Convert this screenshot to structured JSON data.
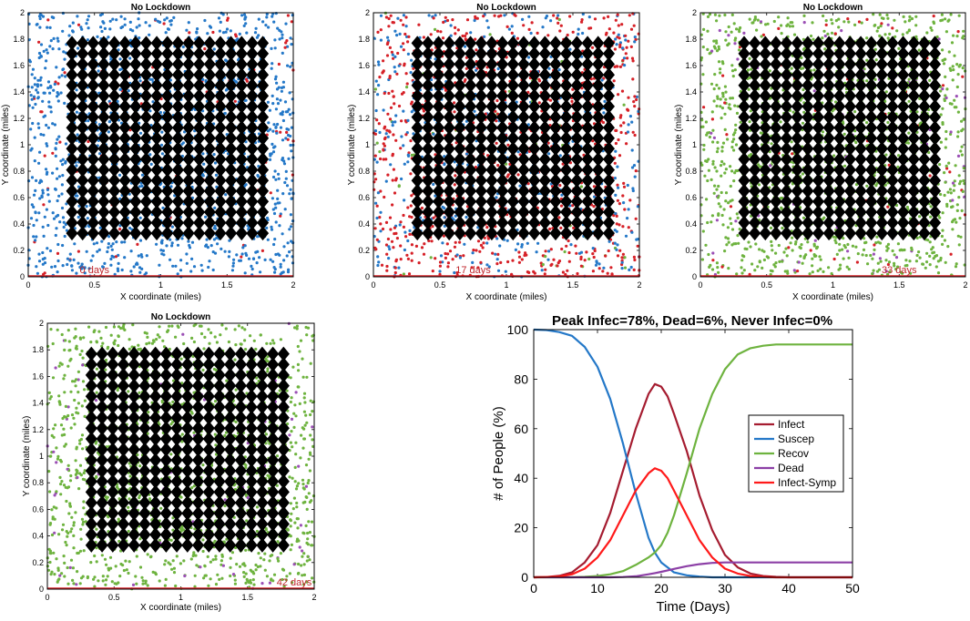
{
  "chart_data": [
    {
      "type": "scatter",
      "title": "No Lockdown",
      "xlabel": "X coordinate (miles)",
      "ylabel": "Y coordinate (miles)",
      "xlim": [
        0,
        2
      ],
      "ylim": [
        0,
        2
      ],
      "xticks": [
        "0",
        "0.5",
        "1",
        "1.5",
        "2"
      ],
      "yticks": [
        "0",
        "0.2",
        "0.4",
        "0.6",
        "0.8",
        "1",
        "1.2",
        "1.4",
        "1.6",
        "1.8",
        "2"
      ],
      "day_label": "0 days",
      "grid_markers": {
        "x_range": [
          0.33,
          1.77
        ],
        "y_range": [
          0.33,
          1.77
        ],
        "count": 19
      },
      "population_mix": {
        "susceptible": 0.93,
        "infected": 0.07,
        "recovered": 0.0,
        "dead": 0.0
      },
      "colors": {
        "susceptible": "#2478c8",
        "infected": "#d62027",
        "recovered": "#6eb33f",
        "dead": "#9b4fb5",
        "marker": "#000000"
      }
    },
    {
      "type": "scatter",
      "title": "No Lockdown",
      "xlabel": "X coordinate (miles)",
      "ylabel": "Y coordinate (miles)",
      "xlim": [
        0,
        2
      ],
      "ylim": [
        0,
        2
      ],
      "xticks": [
        "0",
        "0.5",
        "1",
        "1.5",
        "2"
      ],
      "yticks": [
        "0",
        "0.2",
        "0.4",
        "0.6",
        "0.8",
        "1",
        "1.2",
        "1.4",
        "1.6",
        "1.8",
        "2"
      ],
      "day_label": "17 days",
      "grid_markers": {
        "x_range": [
          0.33,
          1.77
        ],
        "y_range": [
          0.33,
          1.77
        ],
        "count": 19
      },
      "population_mix": {
        "susceptible": 0.35,
        "infected": 0.6,
        "recovered": 0.05,
        "dead": 0.0
      },
      "colors": {
        "susceptible": "#2478c8",
        "infected": "#d62027",
        "recovered": "#6eb33f",
        "dead": "#9b4fb5",
        "marker": "#000000"
      }
    },
    {
      "type": "scatter",
      "title": "No Lockdown",
      "xlabel": "X coordinate (miles)",
      "ylabel": "Y coordinate (miles)",
      "xlim": [
        0,
        2
      ],
      "ylim": [
        0,
        2
      ],
      "xticks": [
        "0",
        "0.5",
        "1",
        "1.5",
        "2"
      ],
      "yticks": [
        "0",
        "0.2",
        "0.4",
        "0.6",
        "0.8",
        "1",
        "1.2",
        "1.4",
        "1.6",
        "1.8",
        "2"
      ],
      "day_label": "33 days",
      "grid_markers": {
        "x_range": [
          0.33,
          1.77
        ],
        "y_range": [
          0.33,
          1.77
        ],
        "count": 19
      },
      "population_mix": {
        "susceptible": 0.0,
        "infected": 0.04,
        "recovered": 0.91,
        "dead": 0.05
      },
      "colors": {
        "susceptible": "#2478c8",
        "infected": "#d62027",
        "recovered": "#6eb33f",
        "dead": "#9b4fb5",
        "marker": "#000000"
      }
    },
    {
      "type": "scatter",
      "title": "No Lockdown",
      "xlabel": "X coordinate (miles)",
      "ylabel": "Y coordinate (miles)",
      "xlim": [
        0,
        2
      ],
      "ylim": [
        0,
        2
      ],
      "xticks": [
        "0",
        "0.5",
        "1",
        "1.5",
        "2"
      ],
      "yticks": [
        "0",
        "0.2",
        "0.4",
        "0.6",
        "0.8",
        "1",
        "1.2",
        "1.4",
        "1.6",
        "1.8",
        "2"
      ],
      "day_label": "42 days",
      "grid_markers": {
        "x_range": [
          0.33,
          1.77
        ],
        "y_range": [
          0.33,
          1.77
        ],
        "count": 19
      },
      "population_mix": {
        "susceptible": 0.0,
        "infected": 0.0,
        "recovered": 0.94,
        "dead": 0.06
      },
      "colors": {
        "susceptible": "#2478c8",
        "infected": "#d62027",
        "recovered": "#6eb33f",
        "dead": "#9b4fb5",
        "marker": "#000000"
      }
    },
    {
      "type": "line",
      "title": "Peak Infec=78%, Dead=6%, Never Infec=0%",
      "xlabel": "Time (Days)",
      "ylabel": "# of People (%)",
      "xlim": [
        0,
        50
      ],
      "ylim": [
        0,
        100
      ],
      "xticks": [
        "0",
        "10",
        "20",
        "30",
        "40",
        "50"
      ],
      "yticks": [
        "0",
        "20",
        "40",
        "60",
        "80",
        "100"
      ],
      "legend_position": "center-right",
      "x": [
        0,
        2,
        4,
        6,
        8,
        10,
        12,
        14,
        16,
        18,
        19,
        20,
        21,
        22,
        24,
        26,
        28,
        30,
        32,
        34,
        36,
        38,
        40,
        45,
        50
      ],
      "series": [
        {
          "name": "Infect",
          "color": "#a51c30",
          "values": [
            0,
            0.1,
            0.6,
            2,
            6,
            13,
            26,
            43,
            60,
            74,
            78,
            77,
            73,
            66,
            51,
            33,
            19,
            9,
            4,
            1.5,
            0.5,
            0.2,
            0,
            0,
            0
          ]
        },
        {
          "name": "Suscep",
          "color": "#2478c8",
          "values": [
            100,
            99.8,
            99,
            97.5,
            93,
            85,
            72,
            54,
            34,
            16,
            10,
            6,
            4,
            2,
            0.8,
            0.3,
            0,
            0,
            0,
            0,
            0,
            0,
            0,
            0,
            0
          ]
        },
        {
          "name": "Recov",
          "color": "#6eb33f",
          "values": [
            0,
            0,
            0,
            0,
            0.2,
            0.5,
            1.2,
            2.5,
            5,
            8,
            10,
            13,
            18,
            25,
            42,
            60,
            74,
            84,
            90,
            92.5,
            93.5,
            94,
            94,
            94,
            94
          ]
        },
        {
          "name": "Dead",
          "color": "#8c3fa6",
          "values": [
            0,
            0,
            0,
            0,
            0,
            0,
            0,
            0.1,
            0.4,
            1.2,
            1.7,
            2.2,
            2.8,
            3.4,
            4.5,
            5.3,
            5.8,
            6,
            6,
            6,
            6,
            6,
            6,
            6,
            6
          ]
        },
        {
          "name": "Infect-Symp",
          "color": "#ff1a1a",
          "values": [
            0,
            0.1,
            0.3,
            1.2,
            3.5,
            8,
            15,
            25,
            35,
            42,
            44,
            43,
            40,
            35,
            25,
            15,
            8,
            3.5,
            1.5,
            0.5,
            0.2,
            0,
            0,
            0,
            0
          ]
        }
      ]
    }
  ]
}
